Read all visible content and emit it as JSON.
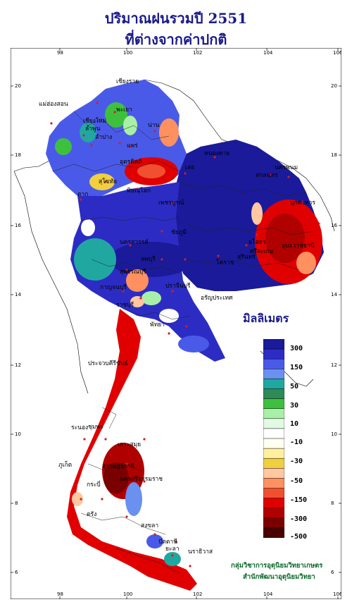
{
  "title": {
    "line1": "ปริมาณฝนรวมปี 2551",
    "line2": "ที่ต่างจากค่าปกติ"
  },
  "axes": {
    "x_ticks": [
      "98",
      "100",
      "102",
      "104",
      "106"
    ],
    "y_ticks": [
      "20",
      "18",
      "16",
      "14",
      "12",
      "10",
      "8",
      "6"
    ]
  },
  "legend": {
    "title": "มิลลิเมตร",
    "bins": [
      {
        "color": "#1a1a9a"
      },
      {
        "color": "#2c2cc4"
      },
      {
        "color": "#4a5ae8"
      },
      {
        "color": "#6a90f0"
      },
      {
        "color": "#20a8a0"
      },
      {
        "color": "#2e8b57"
      },
      {
        "color": "#3ec03e"
      },
      {
        "color": "#a8f0a8"
      },
      {
        "color": "#e2fae2"
      },
      {
        "color": "#ffffff"
      },
      {
        "color": "#fffff0"
      },
      {
        "color": "#fff0a0"
      },
      {
        "color": "#f0d040"
      },
      {
        "color": "#ffc8a0"
      },
      {
        "color": "#ff9060"
      },
      {
        "color": "#f05030"
      },
      {
        "color": "#e00000"
      },
      {
        "color": "#b00000"
      },
      {
        "color": "#7a0000"
      },
      {
        "color": "#4a0000"
      }
    ],
    "labels": [
      "300",
      "150",
      "50",
      "30",
      "10",
      "-10",
      "-30",
      "-50",
      "-150",
      "-300",
      "-500"
    ]
  },
  "places": [
    "เชียงราย",
    "แม่ฮ่องสอน",
    "พะเยา",
    "เชียงใหม่",
    "ลำพูน",
    "ลำปาง",
    "น่าน",
    "แพร่",
    "อุตรดิตถ์",
    "หนองคาย",
    "นครพนม",
    "สกลนคร",
    "เลย",
    "มุกดาหาร",
    "สุโขทัย",
    "พิษณุโลก",
    "ตาก",
    "เพชรบูรณ์",
    "อุบลราชธานี",
    "ยโสธร",
    "ศรีสะเกษ",
    "สุรินทร์",
    "โคราช",
    "ชัยภูมิ",
    "นครสวรรค์",
    "ลพบุรี",
    "สุพรรณบุรี",
    "กาญจนบุรี",
    "ปราจีนบุรี",
    "ราชบุรี",
    "อรัญประเทศ",
    "พัทยา",
    "ประจวบคีรีขันธ์",
    "ชุมพร",
    "ระนอง",
    "เกาะสมุย",
    "สุราษฎร์ธานี",
    "นครศรีธรรมราช",
    "ภูเก็ต",
    "กระบี่",
    "ตรัง",
    "สงขลา",
    "ปัตตานี",
    "ยะลา",
    "นราธิวาส"
  ],
  "credit": {
    "line1": "กลุ่มวิชาการอุตุนิยมวิทยาเกษตร",
    "line2": "สำนักพัฒนาอุตุนิยมวิทยา"
  }
}
